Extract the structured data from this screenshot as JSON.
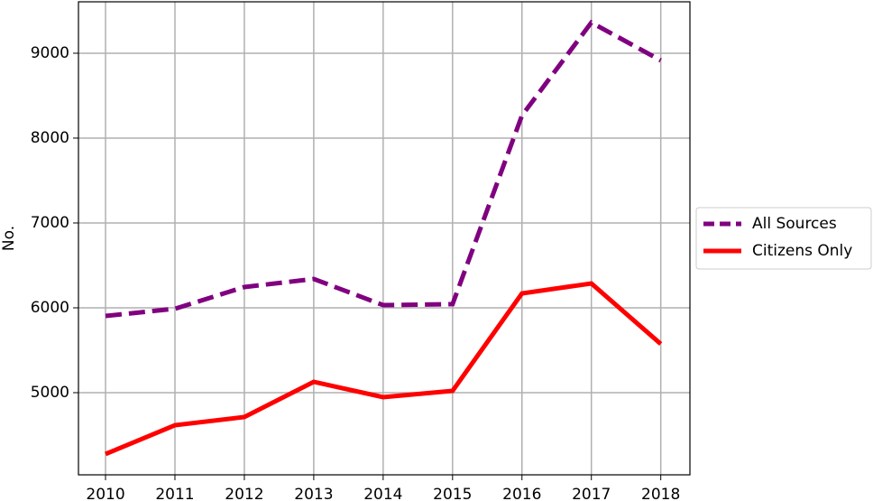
{
  "chart_data": {
    "type": "line",
    "y_label": "No.",
    "x": [
      2010,
      2011,
      2012,
      2013,
      2014,
      2015,
      2016,
      2017,
      2018
    ],
    "xlim": [
      2009.61,
      2018.42
    ],
    "xticks": [
      2010,
      2011,
      2012,
      2013,
      2014,
      2015,
      2016,
      2017,
      2018
    ],
    "ylim": [
      4032,
      9606
    ],
    "yticks": [
      5000,
      6000,
      7000,
      8000,
      9000
    ],
    "grid": true,
    "legend": "right-outside",
    "series": [
      {
        "name": "All Sources",
        "color": "#800080",
        "dash": true,
        "values": [
          5904,
          5989,
          6245,
          6340,
          6032,
          6043,
          8266,
          9362,
          8915
        ]
      },
      {
        "name": "Citizens Only",
        "color": "#ff0000",
        "dash": false,
        "values": [
          4277,
          4617,
          4713,
          5128,
          4947,
          5021,
          6170,
          6287,
          5574
        ]
      }
    ]
  }
}
